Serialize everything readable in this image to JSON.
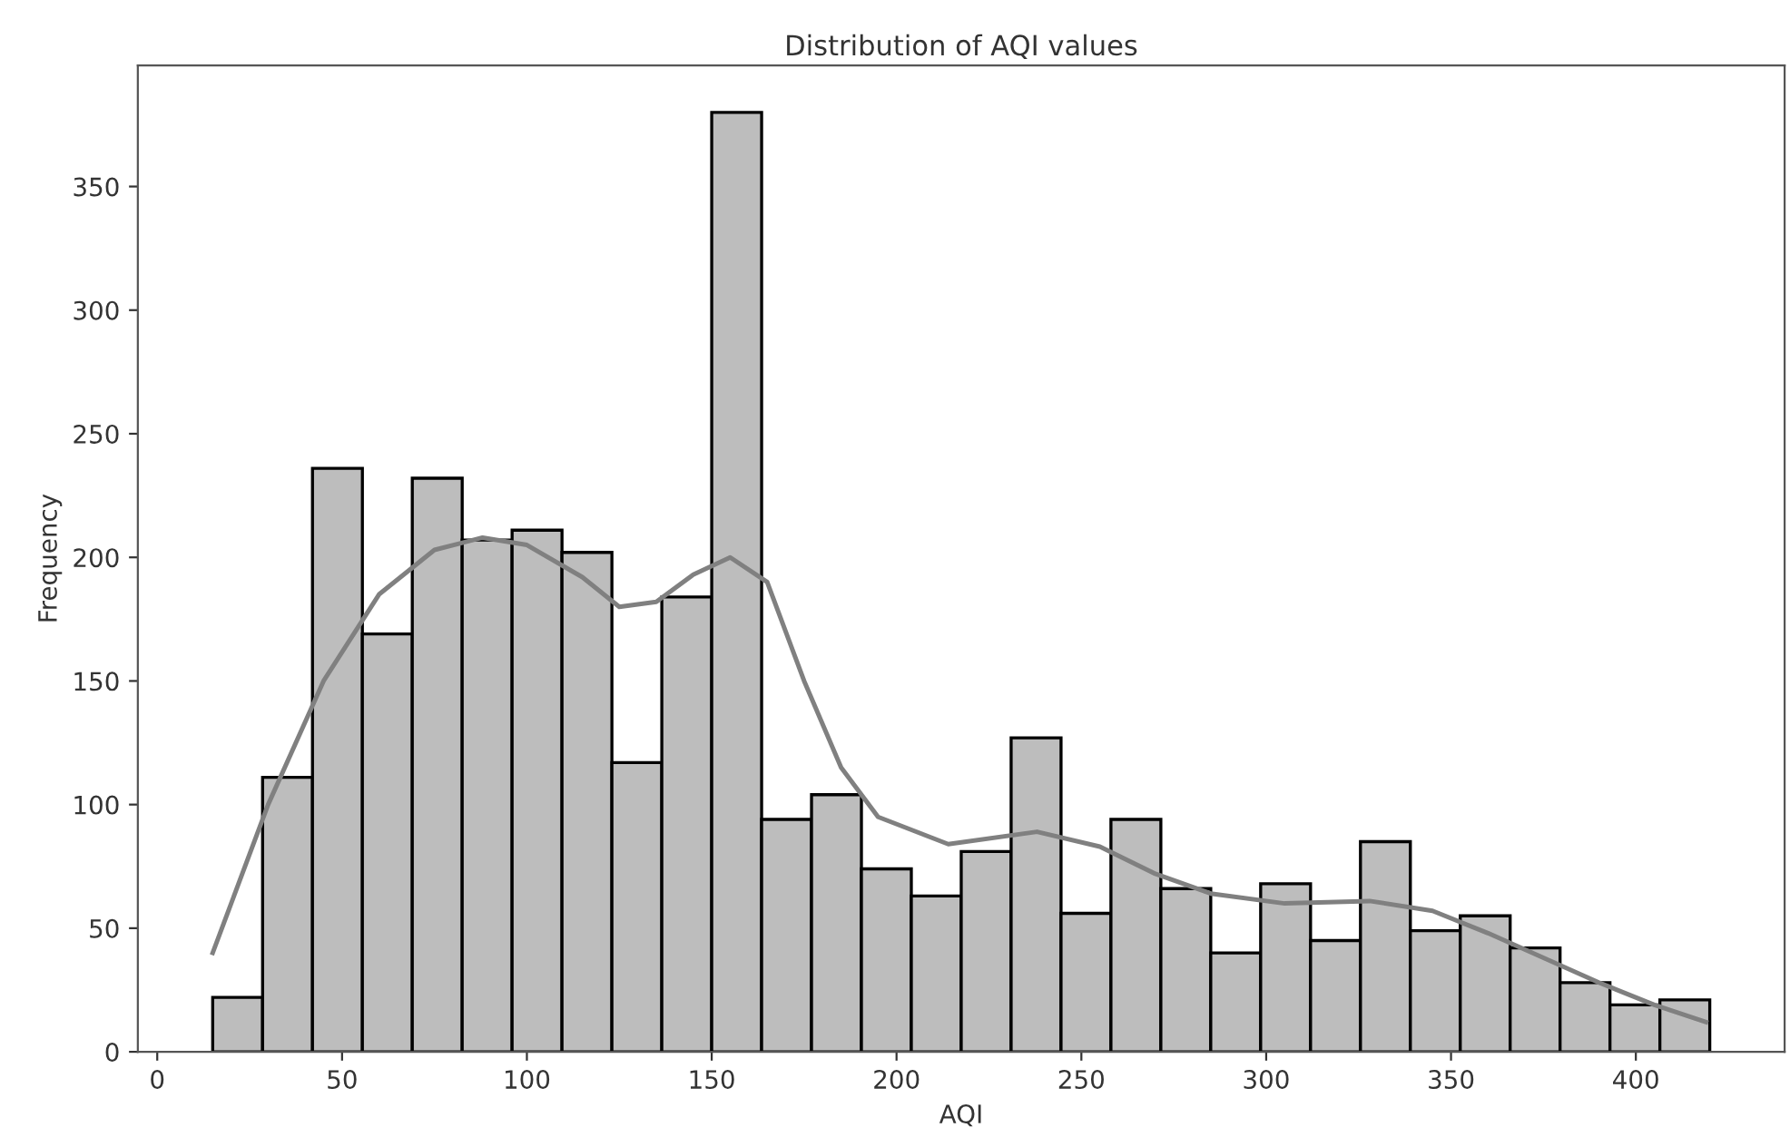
{
  "chart_data": {
    "type": "histogram",
    "title": "Distribution of AQI values",
    "xlabel": "AQI",
    "ylabel": "Frequency",
    "bins": [
      15,
      28.5,
      42,
      55.5,
      69,
      82.5,
      96,
      109.5,
      123,
      136.5,
      150,
      163.5,
      177,
      190.5,
      204,
      217.5,
      231,
      244.5,
      258,
      271.5,
      285,
      298.5,
      312,
      325.5,
      339,
      352.5,
      366,
      379.5,
      393,
      406.5,
      420
    ],
    "series": [
      {
        "color": "#bdbdbd",
        "values": [
          22,
          111,
          236,
          169,
          232,
          207,
          211,
          202,
          117,
          184,
          380,
          94,
          104,
          74,
          63,
          81,
          127,
          56,
          94,
          66,
          40,
          68,
          45,
          85,
          49,
          55,
          42,
          28,
          19,
          21
        ]
      },
      {
        "type": "line",
        "color": "#808080",
        "x": [
          15,
          30,
          45,
          60,
          75,
          88,
          100,
          115,
          125,
          135,
          145,
          155,
          165,
          175,
          185,
          195,
          214,
          238,
          255,
          270,
          285,
          305,
          328,
          345,
          360,
          375,
          390,
          405,
          419
        ],
        "values": [
          40,
          100,
          150,
          185,
          203,
          208,
          205,
          192,
          180,
          182,
          193,
          200,
          190,
          150,
          115,
          95,
          84,
          89,
          83,
          72,
          64,
          60,
          61,
          57,
          48,
          38,
          28,
          19,
          12
        ]
      }
    ],
    "xlim": [
      -5.25,
      440.25
    ],
    "xticks": [
      0,
      50,
      100,
      150,
      200,
      250,
      300,
      350,
      400
    ],
    "ylim": [
      0,
      399
    ],
    "yticks": [
      0,
      50,
      100,
      150,
      200,
      250,
      300,
      350
    ],
    "grid": false
  }
}
